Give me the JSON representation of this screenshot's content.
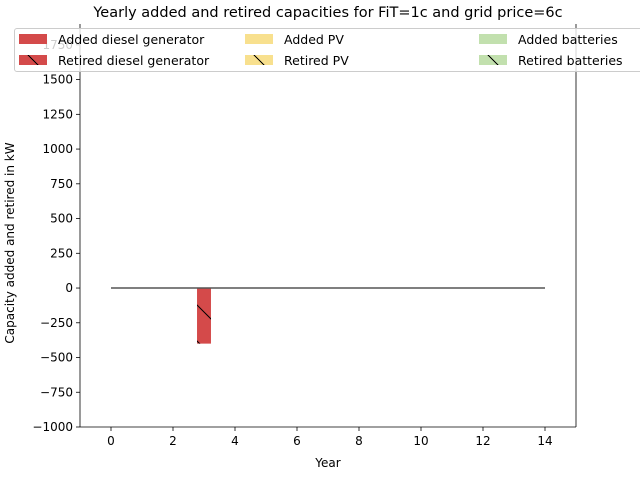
{
  "chart_data": {
    "type": "bar",
    "title": "Yearly added and retired capacities for FiT=1c and grid price=6c",
    "xlabel": "Year",
    "ylabel": "Capacity added and retired in kW",
    "xlim": [
      -1,
      15
    ],
    "ylim": [
      -1000,
      1900
    ],
    "xticks": [
      0,
      2,
      4,
      6,
      8,
      10,
      12,
      14
    ],
    "yticks": [
      -1000,
      -750,
      -500,
      -250,
      0,
      250,
      500,
      750,
      1000,
      1250,
      1500,
      1750
    ],
    "legend": {
      "placement": "top",
      "columns": 3,
      "entries": [
        {
          "label": "Added diesel generator",
          "color": "#d44a4a",
          "hatch": false
        },
        {
          "label": "Added PV",
          "color": "#f8e08e",
          "hatch": false
        },
        {
          "label": "Added batteries",
          "color": "#c2e0ae",
          "hatch": false
        },
        {
          "label": "Retired diesel generator",
          "color": "#d44a4a",
          "hatch": true
        },
        {
          "label": "Retired PV",
          "color": "#f8e08e",
          "hatch": true
        },
        {
          "label": "Retired batteries",
          "color": "#c2e0ae",
          "hatch": true
        }
      ]
    },
    "years": [
      0,
      1,
      2,
      3,
      4,
      5,
      6,
      7,
      8,
      9,
      10,
      11,
      12,
      13,
      14
    ],
    "series": [
      {
        "name": "Added diesel generator",
        "values": [
          0,
          0,
          0,
          0,
          0,
          0,
          0,
          0,
          0,
          0,
          0,
          0,
          0,
          0,
          0
        ]
      },
      {
        "name": "Added PV",
        "values": [
          0,
          0,
          0,
          0,
          0,
          0,
          0,
          0,
          0,
          0,
          0,
          0,
          0,
          0,
          0
        ]
      },
      {
        "name": "Added batteries",
        "values": [
          0,
          0,
          0,
          0,
          0,
          0,
          0,
          0,
          0,
          0,
          0,
          0,
          0,
          0,
          0
        ]
      },
      {
        "name": "Retired diesel generator",
        "values": [
          0,
          0,
          0,
          -400,
          0,
          0,
          0,
          0,
          0,
          0,
          0,
          0,
          0,
          0,
          0
        ]
      },
      {
        "name": "Retired PV",
        "values": [
          0,
          0,
          0,
          0,
          0,
          0,
          0,
          0,
          0,
          0,
          0,
          0,
          0,
          0,
          0
        ]
      },
      {
        "name": "Retired batteries",
        "values": [
          0,
          0,
          0,
          0,
          0,
          0,
          0,
          0,
          0,
          0,
          0,
          0,
          0,
          0,
          0
        ]
      }
    ],
    "zero_line": {
      "x_range": [
        0,
        14
      ],
      "y": 0
    }
  }
}
